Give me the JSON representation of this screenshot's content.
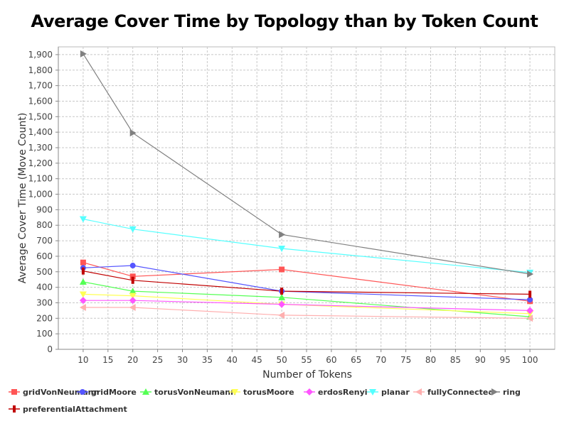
{
  "chart_data": {
    "type": "line",
    "title": "Average Cover Time by Topology than by Token Count",
    "xlabel": "Number of Tokens",
    "ylabel": "Average Cover Time (Move Count)",
    "x": [
      10,
      20,
      50,
      100
    ],
    "xlim": [
      5,
      105
    ],
    "ylim": [
      0,
      1950
    ],
    "xticks": [
      "10",
      "15",
      "20",
      "25",
      "30",
      "35",
      "40",
      "45",
      "50",
      "55",
      "60",
      "65",
      "70",
      "75",
      "80",
      "85",
      "90",
      "95",
      "100"
    ],
    "yticks": [
      "0",
      "100",
      "200",
      "300",
      "400",
      "500",
      "600",
      "700",
      "800",
      "900",
      "1,000",
      "1,100",
      "1,200",
      "1,300",
      "1,400",
      "1,500",
      "1,600",
      "1,700",
      "1,800",
      "1,900"
    ],
    "grid": true,
    "legend_position": "bottom",
    "series": [
      {
        "name": "gridVonNeumann",
        "color": "#ff5555",
        "marker": "square",
        "values": [
          560,
          470,
          515,
          310
        ]
      },
      {
        "name": "gridMoore",
        "color": "#5555ff",
        "marker": "circle",
        "values": [
          525,
          540,
          375,
          320
        ]
      },
      {
        "name": "torusVonNeumann",
        "color": "#55ff55",
        "marker": "triangle-up",
        "values": [
          435,
          375,
          335,
          210
        ]
      },
      {
        "name": "torusMoore",
        "color": "#ffff55",
        "marker": "triangle-down",
        "values": [
          355,
          345,
          290,
          230
        ]
      },
      {
        "name": "erdosRenyi",
        "color": "#ff55ff",
        "marker": "diamond",
        "values": [
          315,
          315,
          290,
          250
        ]
      },
      {
        "name": "planar",
        "color": "#55ffff",
        "marker": "triangle-down",
        "values": [
          840,
          775,
          650,
          495
        ]
      },
      {
        "name": "fullyConnected",
        "color": "#ffafaf",
        "marker": "triangle-left",
        "values": [
          270,
          270,
          220,
          200
        ]
      },
      {
        "name": "ring",
        "color": "#808080",
        "marker": "triangle-right",
        "values": [
          1905,
          1395,
          740,
          485
        ]
      },
      {
        "name": "preferentialAttachment",
        "color": "#c00000",
        "marker": "bar",
        "values": [
          505,
          445,
          375,
          355
        ]
      }
    ]
  }
}
